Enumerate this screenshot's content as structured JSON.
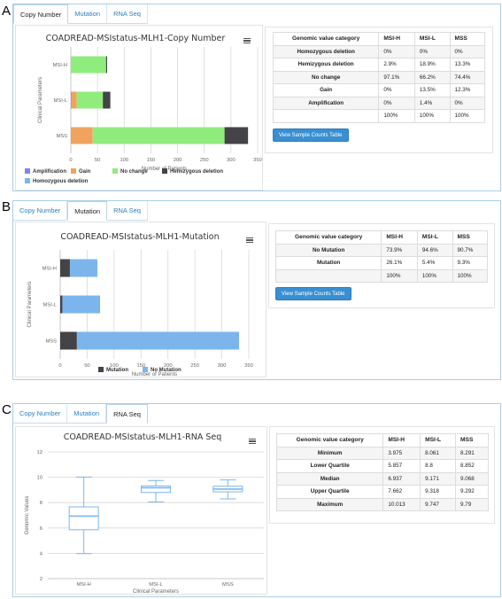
{
  "panels": [
    {
      "letter": "A",
      "tabs": [
        {
          "label": "Copy Number",
          "active": true
        },
        {
          "label": "Mutation",
          "active": false
        },
        {
          "label": "RNA Seq",
          "active": false
        }
      ],
      "button_label": "View Sample Counts Table",
      "table": {
        "headers": [
          "Genomic value category",
          "MSI-H",
          "MSI-L",
          "MSS"
        ],
        "rows": [
          [
            "Homozygous deletion",
            "0%",
            "0%",
            "0%"
          ],
          [
            "Hemizygous deletion",
            "2.9%",
            "18.9%",
            "13.3%"
          ],
          [
            "No change",
            "97.1%",
            "66.2%",
            "74.4%"
          ],
          [
            "Gain",
            "0%",
            "13.5%",
            "12.3%"
          ],
          [
            "Amplification",
            "0%",
            "1.4%",
            "0%"
          ],
          [
            "",
            "100%",
            "100%",
            "100%"
          ]
        ]
      }
    },
    {
      "letter": "B",
      "tabs": [
        {
          "label": "Copy Number",
          "active": false
        },
        {
          "label": "Mutation",
          "active": true
        },
        {
          "label": "RNA Seq",
          "active": false
        }
      ],
      "button_label": "View Sample Counts Table",
      "table": {
        "headers": [
          "Genomic value category",
          "MSI-H",
          "MSI-L",
          "MSS"
        ],
        "rows": [
          [
            "No Mutation",
            "73.9%",
            "94.6%",
            "90.7%"
          ],
          [
            "Mutation",
            "26.1%",
            "5.4%",
            "9.3%"
          ],
          [
            "",
            "100%",
            "100%",
            "100%"
          ]
        ]
      }
    },
    {
      "letter": "C",
      "tabs": [
        {
          "label": "Copy Number",
          "active": false
        },
        {
          "label": "Mutation",
          "active": false
        },
        {
          "label": "RNA Seq",
          "active": true
        }
      ],
      "table": {
        "headers": [
          "Genomic value category",
          "MSI-H",
          "MSI-L",
          "MSS"
        ],
        "rows": [
          [
            "Minimum",
            "3.975",
            "8.061",
            "8.291"
          ],
          [
            "Lower Quartile",
            "5.857",
            "8.8",
            "8.852"
          ],
          [
            "Median",
            "6.937",
            "9.171",
            "9.068"
          ],
          [
            "Upper Quartile",
            "7.662",
            "9.318",
            "9.292"
          ],
          [
            "Maximum",
            "10.013",
            "9.747",
            "9.79"
          ]
        ]
      }
    }
  ],
  "chart_data": [
    {
      "type": "bar",
      "orientation": "horizontal",
      "stacked": true,
      "title": "COADREAD-MSIstatus-MLH1-Copy Number",
      "xlabel": "Number of Patients",
      "ylabel": "Clinical Parameters",
      "categories": [
        "MSI-H",
        "MSI-L",
        "MSS"
      ],
      "xlim": [
        0,
        350
      ],
      "xticks": [
        0,
        50,
        100,
        150,
        200,
        250,
        300,
        350
      ],
      "series": [
        {
          "name": "Amplification",
          "color": "#8085e8",
          "values": [
            0,
            1,
            0
          ]
        },
        {
          "name": "Gain",
          "color": "#f0a35e",
          "values": [
            0,
            10,
            41
          ]
        },
        {
          "name": "No change",
          "color": "#90ed7d",
          "values": [
            66,
            49,
            247
          ]
        },
        {
          "name": "Hemizygous deletion",
          "color": "#434348",
          "values": [
            2,
            14,
            44
          ]
        },
        {
          "name": "Homozygous deletion",
          "color": "#7cb5ec",
          "values": [
            0,
            0,
            0
          ]
        }
      ],
      "legend_position": "bottom"
    },
    {
      "type": "bar",
      "orientation": "horizontal",
      "stacked": true,
      "title": "COADREAD-MSIstatus-MLH1-Mutation",
      "xlabel": "Number of Patients",
      "ylabel": "Clinical Parameters",
      "categories": [
        "MSI-H",
        "MSI-L",
        "MSS"
      ],
      "xlim": [
        0,
        350
      ],
      "xticks": [
        0,
        50,
        100,
        150,
        200,
        250,
        300,
        350
      ],
      "series": [
        {
          "name": "Mutation",
          "color": "#434348",
          "values": [
            18,
            4,
            31
          ]
        },
        {
          "name": "No Mutation",
          "color": "#7cb5ec",
          "values": [
            51,
            70,
            301
          ]
        }
      ],
      "legend_position": "bottom"
    },
    {
      "type": "boxplot",
      "title": "COADREAD-MSIstatus-MLH1-RNA Seq",
      "xlabel": "Clinical Parameters",
      "ylabel": "Genomic Values",
      "categories": [
        "MSI-H",
        "MSI-L",
        "MSS"
      ],
      "ylim": [
        2,
        12
      ],
      "yticks": [
        2,
        4,
        6,
        8,
        10,
        12
      ],
      "boxes": [
        {
          "min": 3.975,
          "q1": 5.857,
          "median": 6.937,
          "q3": 7.662,
          "max": 10.013
        },
        {
          "min": 8.061,
          "q1": 8.8,
          "median": 9.171,
          "q3": 9.318,
          "max": 9.747
        },
        {
          "min": 8.291,
          "q1": 8.852,
          "median": 9.068,
          "q3": 9.292,
          "max": 9.79
        }
      ],
      "color": "#7cb5ec"
    }
  ]
}
